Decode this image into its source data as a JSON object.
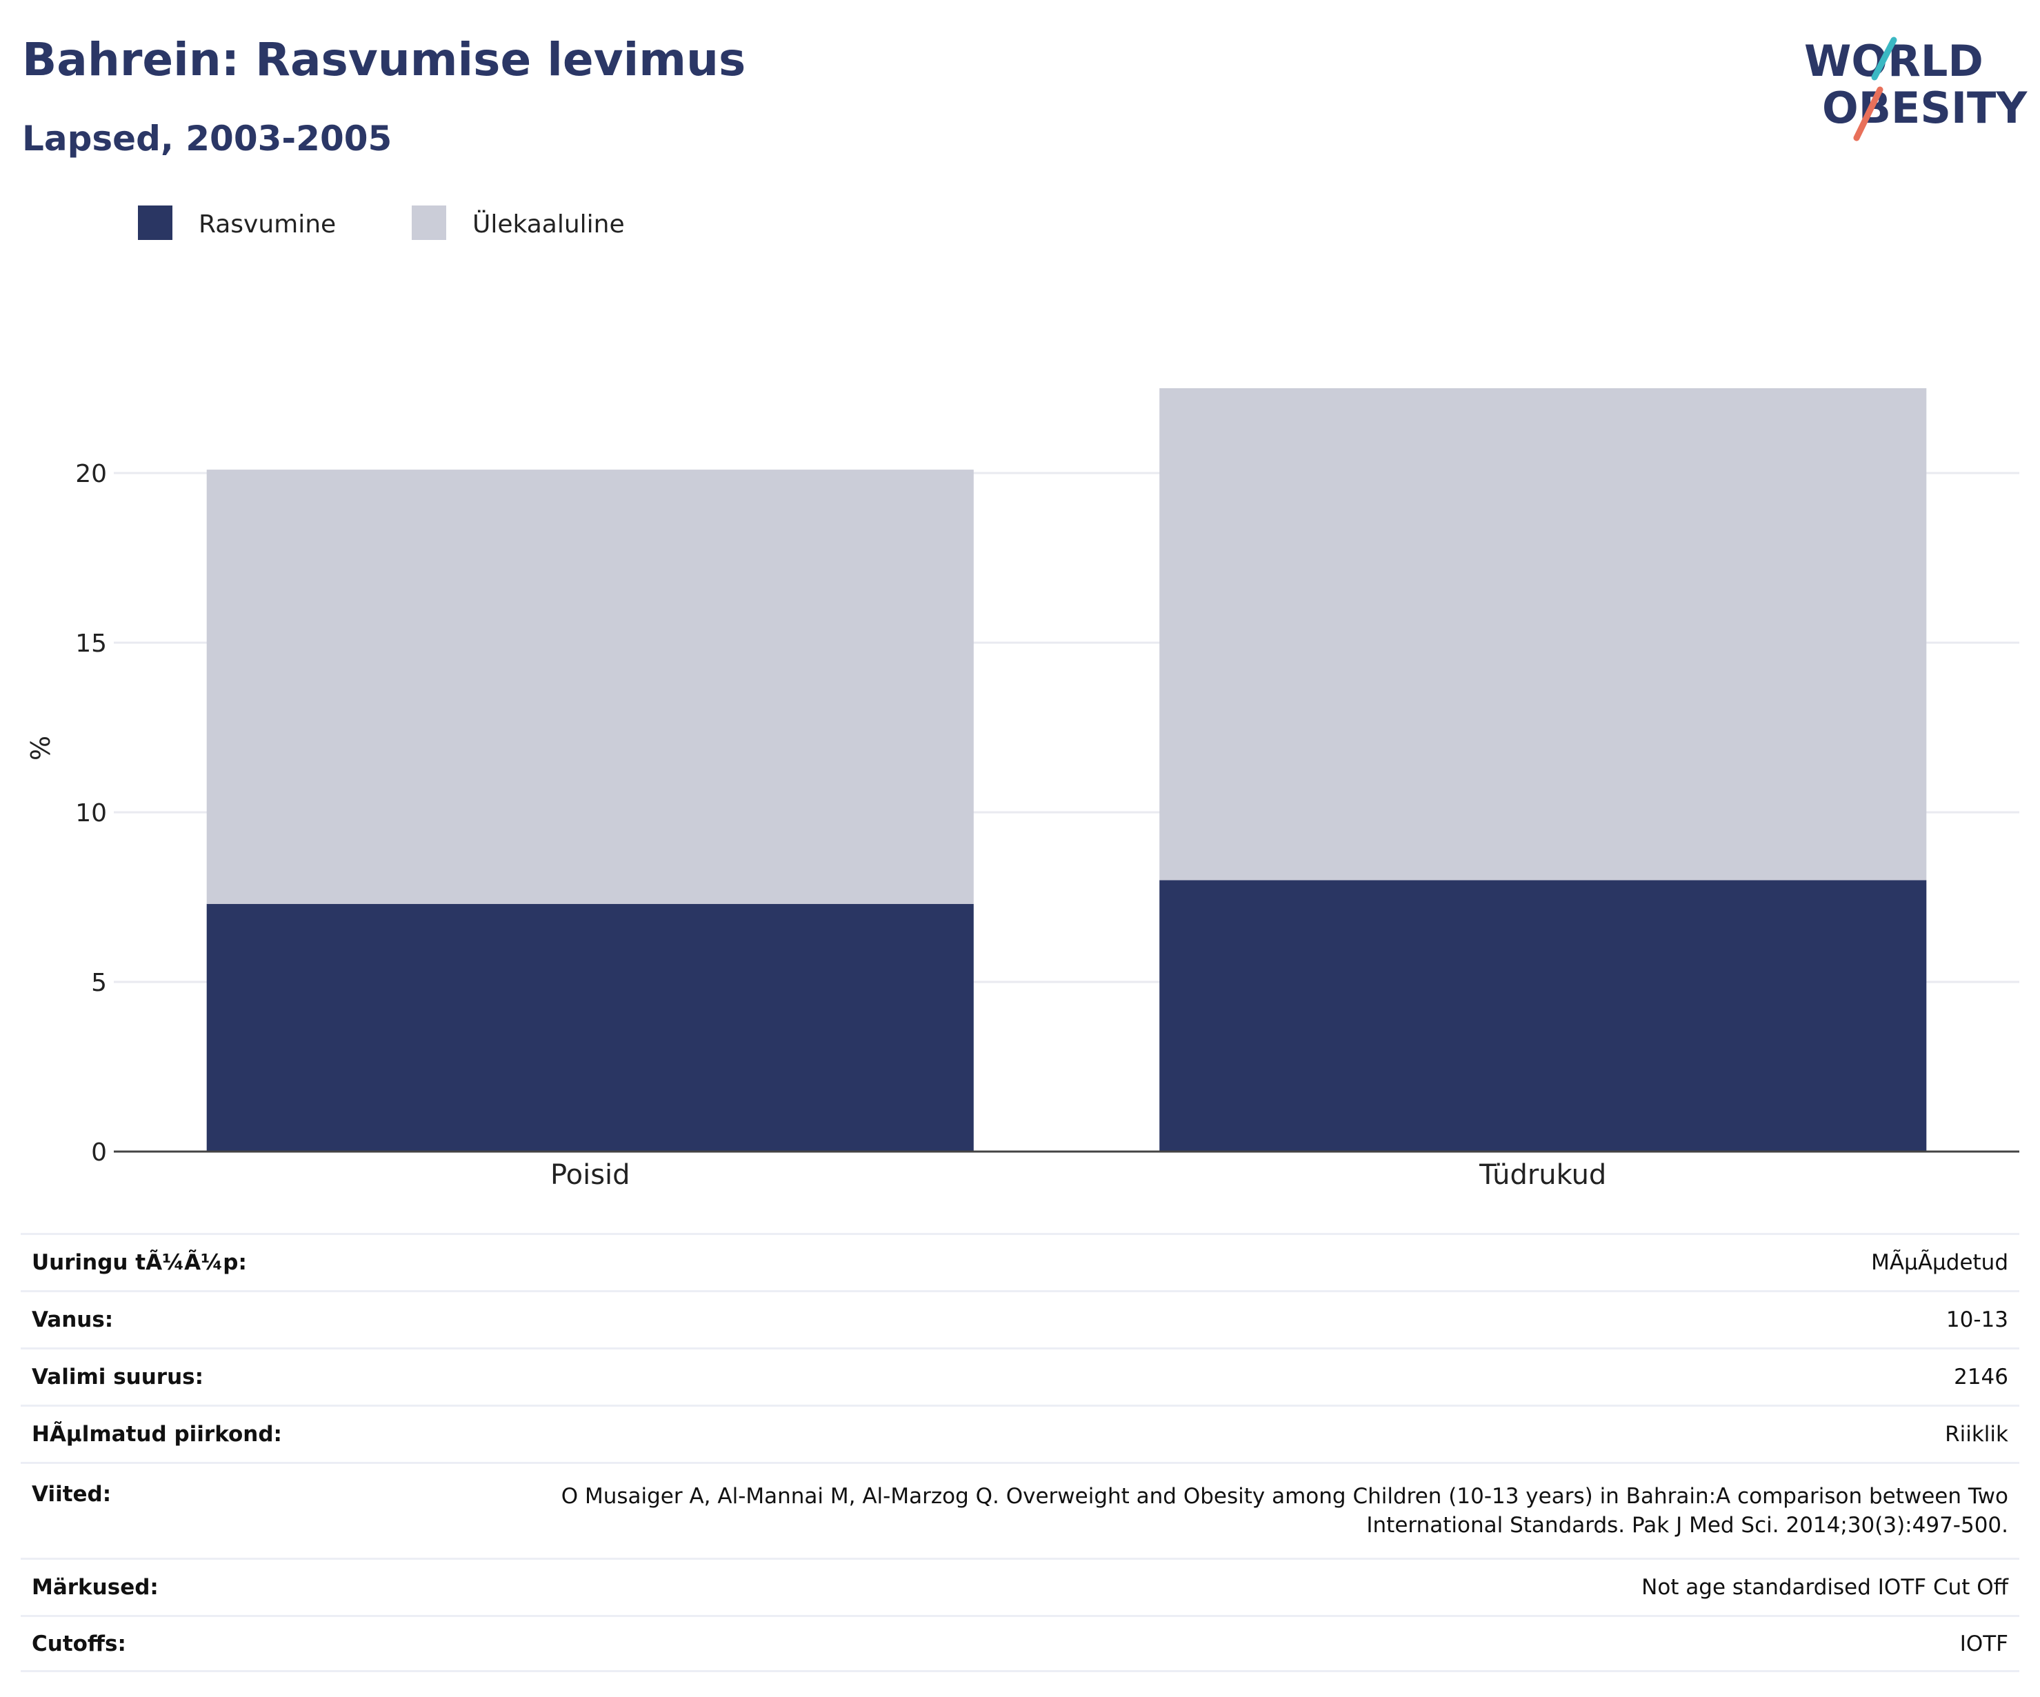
{
  "header": {
    "title": "Bahrein: Rasvumise levimus",
    "subtitle": "Lapsed, 2003-2005"
  },
  "logo": {
    "line1": "WORLD",
    "line2": "OBESITY",
    "colors": {
      "text": "#2b3766",
      "teal": "#3bb8c3",
      "coral": "#e8705a"
    }
  },
  "chart_data": {
    "type": "bar",
    "stacked": true,
    "categories": [
      "Poisid",
      "Tüdrukud"
    ],
    "series": [
      {
        "name": "Rasvumine",
        "values": [
          7.3,
          8.0
        ],
        "color": "#2a3663"
      },
      {
        "name": "Ülekaaluline",
        "values": [
          12.8,
          14.5
        ],
        "color": "#cbcdd8"
      }
    ],
    "ylabel": "%",
    "ylim": [
      0,
      25
    ],
    "yticks": [
      0,
      5,
      10,
      15,
      20
    ],
    "grid": true,
    "legend": "top-left"
  },
  "info": [
    {
      "label": "Uuringu tÃ¼Ã¼p:",
      "value": "MÃµÃµdetud"
    },
    {
      "label": "Vanus:",
      "value": "10-13"
    },
    {
      "label": "Valimi suurus:",
      "value": "2146"
    },
    {
      "label": "HÃµlmatud piirkond:",
      "value": "Riiklik"
    },
    {
      "label": "Viited:",
      "value": "O Musaiger A, Al-Mannai M, Al-Marzog Q. Overweight and Obesity among Children (10-13 years) in Bahrain:A comparison between Two International Standards. Pak J Med Sci. 2014;30(3):497-500."
    },
    {
      "label": "Märkused:",
      "value": "Not age standardised IOTF Cut Off"
    },
    {
      "label": "Cutoffs:",
      "value": "IOTF"
    }
  ]
}
